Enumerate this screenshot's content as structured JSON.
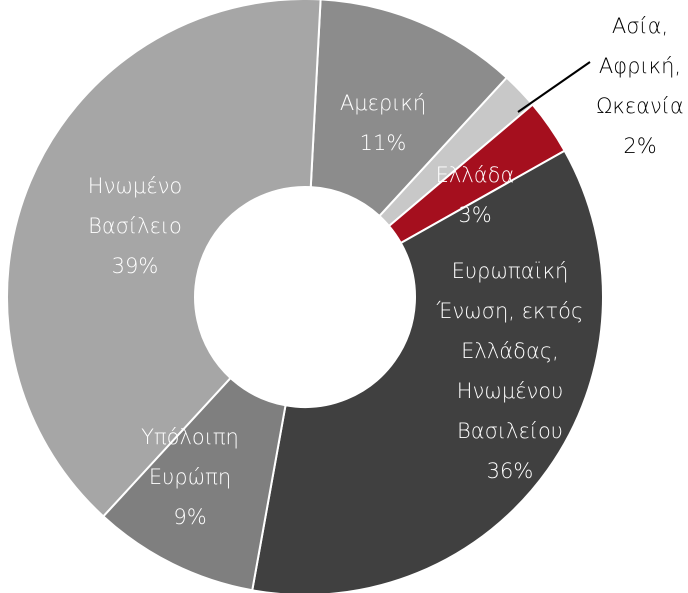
{
  "chart_data": {
    "type": "donut",
    "labels": [
      [
        "Αμερική"
      ],
      [
        "Ασία,",
        "Αφρική,",
        "Ωκεανία"
      ],
      [
        "Ελλάδα"
      ],
      [
        "Ευρωπαϊκή",
        "Ένωση, εκτός",
        "Ελλάδας,",
        "Ηνωμένου",
        "Βασιλείου"
      ],
      [
        "Υπόλοιπη",
        "Ευρώπη"
      ],
      [
        "Ηνωμένο",
        "Βασίλειο"
      ]
    ],
    "values": [
      11,
      2,
      3,
      36,
      9,
      39
    ],
    "value_labels": [
      "11%",
      "2%",
      "3%",
      "36%",
      "9%",
      "39%"
    ],
    "colors": [
      "#8c8c8c",
      "#c8c8c8",
      "#a50f1e",
      "#404040",
      "#7f7f7f",
      "#a6a6a6"
    ]
  }
}
